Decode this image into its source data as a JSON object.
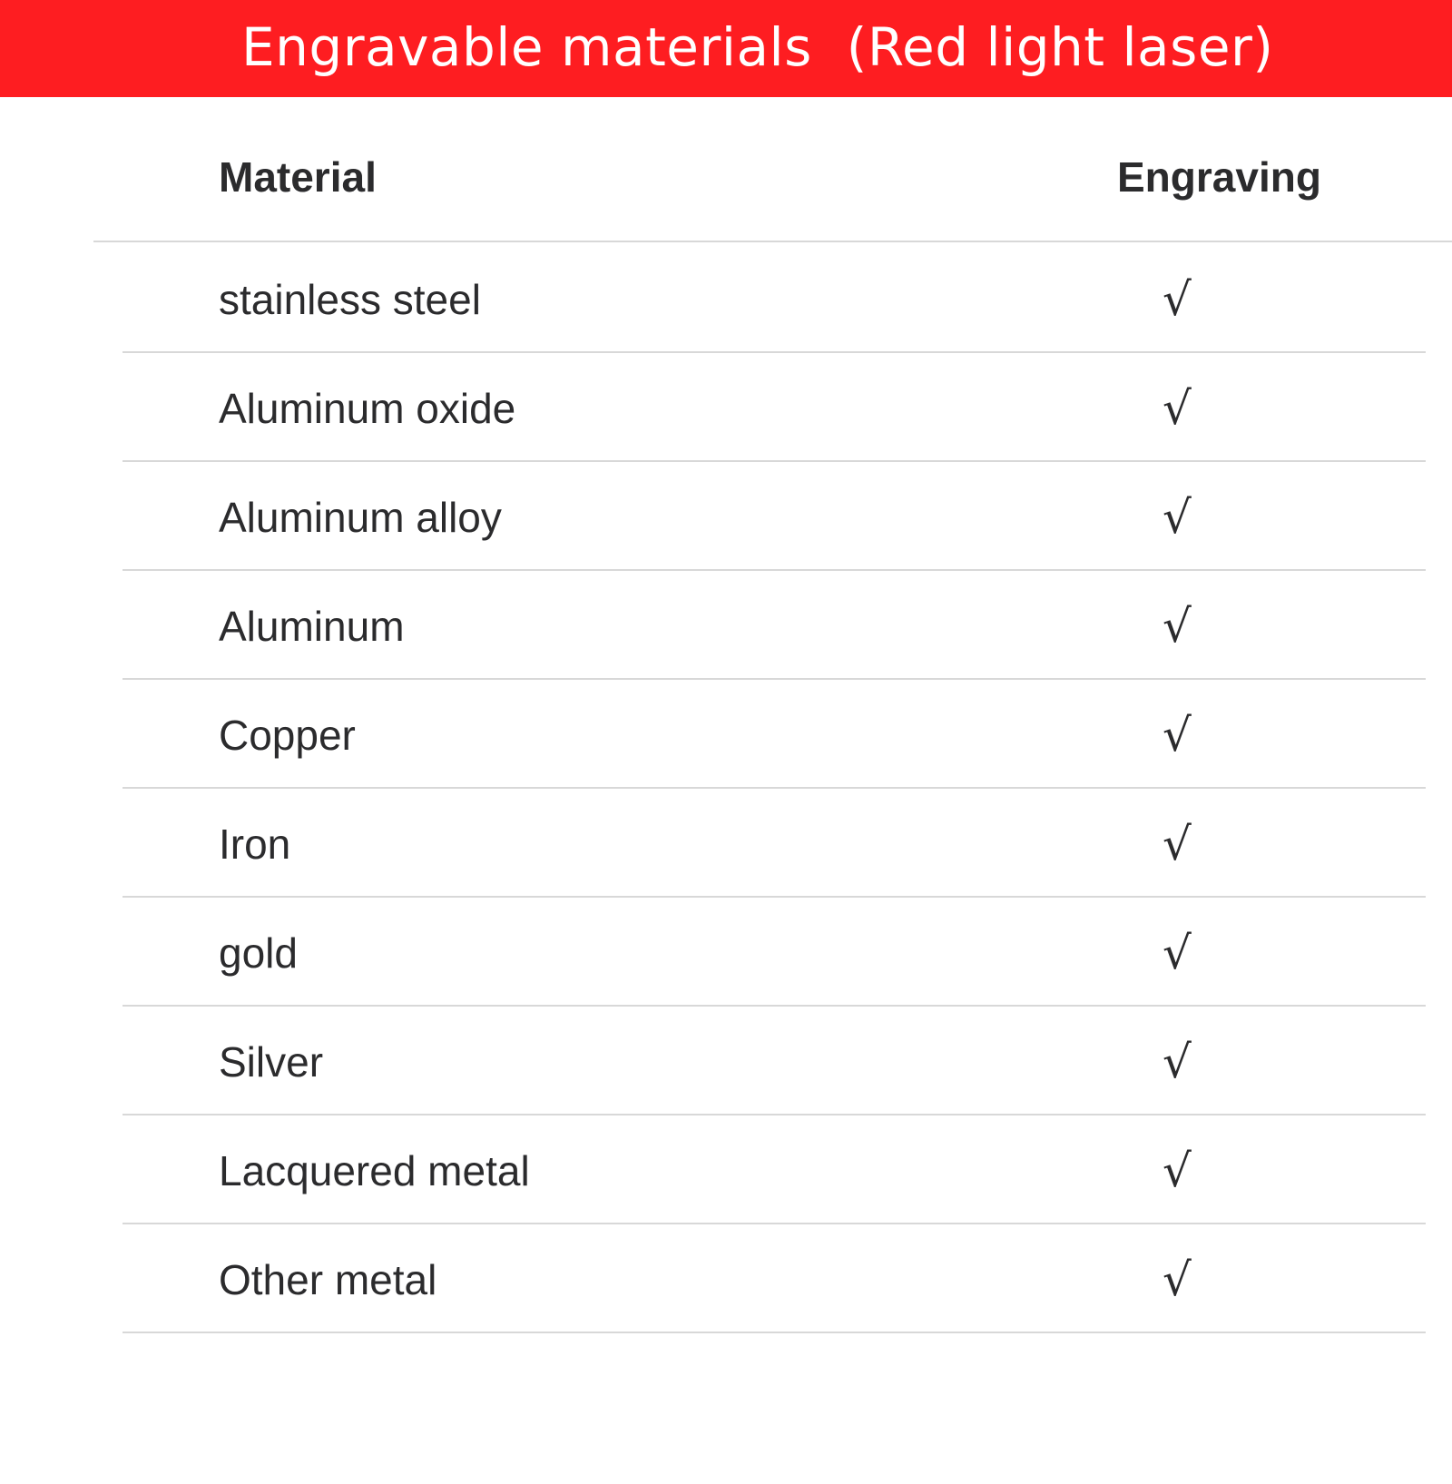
{
  "title": "Engravable materials  (Red light laser)",
  "colors": {
    "banner": "#fe1d21",
    "text": "#2b2b2d",
    "divider": "#d8d8d8"
  },
  "table": {
    "headers": {
      "material": "Material",
      "engraving": "Engraving"
    },
    "rows": [
      {
        "material": "stainless steel",
        "engraving": "√"
      },
      {
        "material": "Aluminum oxide",
        "engraving": "√"
      },
      {
        "material": "Aluminum alloy",
        "engraving": "√"
      },
      {
        "material": "Aluminum",
        "engraving": "√"
      },
      {
        "material": "Copper",
        "engraving": "√"
      },
      {
        "material": "Iron",
        "engraving": "√"
      },
      {
        "material": "gold",
        "engraving": "√"
      },
      {
        "material": "Silver",
        "engraving": "√"
      },
      {
        "material": "Lacquered metal",
        "engraving": "√"
      },
      {
        "material": "Other metal",
        "engraving": "√"
      }
    ]
  }
}
